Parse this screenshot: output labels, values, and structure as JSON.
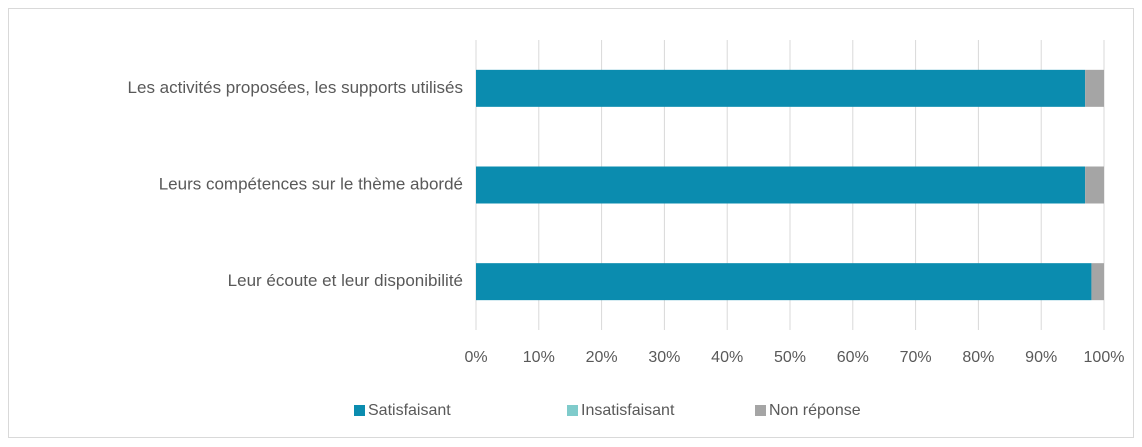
{
  "chart_data": {
    "type": "stacked_barh",
    "categories": [
      "Les activités proposées, les supports utilisés",
      "Leurs compétences sur le thème abordé",
      "Leur écoute et leur disponibilité"
    ],
    "series": [
      {
        "name": "Satisfaisant",
        "color": "#0b8caf",
        "values": [
          97,
          97,
          98
        ]
      },
      {
        "name": "Insatisfaisant",
        "color": "#7fcbcb",
        "values": [
          0,
          0,
          0
        ]
      },
      {
        "name": "Non réponse",
        "color": "#a5a5a5",
        "values": [
          3,
          3,
          2
        ]
      }
    ],
    "xlim": [
      0,
      100
    ],
    "xticks": [
      {
        "value": 0,
        "label": "0%"
      },
      {
        "value": 10,
        "label": "10%"
      },
      {
        "value": 20,
        "label": "20%"
      },
      {
        "value": 30,
        "label": "30%"
      },
      {
        "value": 40,
        "label": "40%"
      },
      {
        "value": 50,
        "label": "50%"
      },
      {
        "value": 60,
        "label": "60%"
      },
      {
        "value": 70,
        "label": "70%"
      },
      {
        "value": 80,
        "label": "80%"
      },
      {
        "value": 90,
        "label": "90%"
      },
      {
        "value": 100,
        "label": "100%"
      }
    ],
    "grid": true,
    "legend": "bottom"
  }
}
